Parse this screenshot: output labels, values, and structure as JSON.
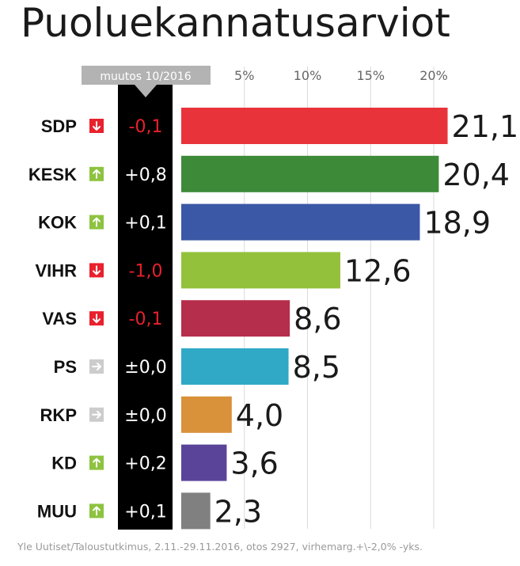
{
  "chart_data": {
    "type": "bar",
    "orientation": "horizontal",
    "title": "Puoluekannatusarviot",
    "change_header": "muutos 10/2016",
    "xtick_labels": [
      "5%",
      "10%",
      "15%",
      "20%"
    ],
    "xticks": [
      5,
      10,
      15,
      20
    ],
    "xlim": [
      0,
      22.5
    ],
    "grid": true,
    "categories": [
      "SDP",
      "KESK",
      "KOK",
      "VIHR",
      "VAS",
      "PS",
      "RKP",
      "KD",
      "MUU"
    ],
    "values": [
      21.1,
      20.4,
      18.9,
      12.6,
      8.6,
      8.5,
      4.0,
      3.6,
      2.3
    ],
    "value_labels": [
      "21,1",
      "20,4",
      "18,9",
      "12,6",
      "8,6",
      "8,5",
      "4,0",
      "3,6",
      "2,3"
    ],
    "changes": [
      "-0,1",
      "+0,8",
      "+0,1",
      "-1,0",
      "-0,1",
      "±0,0",
      "±0,0",
      "+0,2",
      "+0,1"
    ],
    "trends": [
      "down",
      "up",
      "up",
      "down",
      "down",
      "flat",
      "flat",
      "up",
      "up"
    ],
    "bar_colors": [
      "#e8333a",
      "#3d8a39",
      "#3a58a5",
      "#93c13b",
      "#b52e4b",
      "#2fa9c6",
      "#d9913a",
      "#5a449a",
      "#808080"
    ],
    "source": "Yle Uutiset/Taloustutkimus, 2.11.-29.11.2016, otos 2927, virhemarg.+\\-2,0% -yks."
  },
  "colors": {
    "down": "#e8212c",
    "up": "#8dc33f",
    "flat": "#cccccc",
    "change_negative": "#e8212c",
    "change_positive": "#ffffff"
  }
}
